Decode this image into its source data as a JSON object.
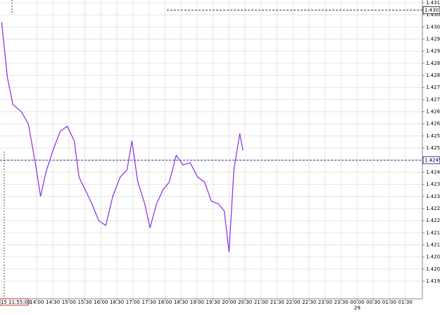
{
  "chart_data": {
    "type": "line",
    "color": "#8a2be2",
    "grid": true,
    "x": [
      "12:54",
      "13:05",
      "13:15",
      "13:31",
      "13:44",
      "13:57",
      "14:07",
      "14:17",
      "14:30",
      "14:44",
      "14:57",
      "15:10",
      "15:19",
      "15:30",
      "15:43",
      "15:56",
      "16:09",
      "16:22",
      "16:36",
      "16:49",
      "16:58",
      "17:09",
      "17:22",
      "17:32",
      "17:44",
      "17:57",
      "18:08",
      "18:21",
      "18:34",
      "18:47",
      "19:01",
      "19:14",
      "19:27",
      "19:40",
      "19:51",
      "20:00",
      "20:09",
      "20:20",
      "20:26"
    ],
    "values": [
      1.4302,
      1.4279,
      1.4268,
      1.4265,
      1.426,
      1.4244,
      1.423,
      1.424,
      1.4249,
      1.4257,
      1.4259,
      1.4253,
      1.4238,
      1.4233,
      1.4227,
      1.422,
      1.4218,
      1.423,
      1.4238,
      1.4241,
      1.4253,
      1.4236,
      1.4227,
      1.4217,
      1.4227,
      1.4233,
      1.4236,
      1.4247,
      1.4243,
      1.4244,
      1.4238,
      1.4236,
      1.4228,
      1.4227,
      1.4224,
      1.4207,
      1.4241,
      1.4256,
      1.4249
    ],
    "xlim": [
      "12:51",
      "02:02"
    ],
    "xticks": [
      "14:00",
      "14:30",
      "15:00",
      "15:30",
      "16:00",
      "16:30",
      "17:00",
      "17:30",
      "18:00",
      "18:30",
      "19:00",
      "19:30",
      "20:00",
      "20:30",
      "21:00",
      "21:30",
      "22:00",
      "22:30",
      "23:00",
      "23:30",
      "00:00",
      "00:30",
      "01:00",
      "01:30"
    ],
    "date_label": "29",
    "crosshair_time": "15 11:55:00",
    "ylim": [
      1.4195,
      1.431
    ],
    "yticks": [
      1.4195,
      {
        "value": 1.42,
        "label": "1.4200"
      },
      1.4205,
      {
        "value": 1.421,
        "label": "1.4210"
      },
      1.4215,
      {
        "value": 1.422,
        "label": "1.4220"
      },
      1.4225,
      {
        "value": 1.423,
        "label": "1.4230"
      },
      1.4235,
      {
        "value": 1.424,
        "label": "1.4240"
      },
      1.4245,
      {
        "value": 1.425,
        "label": "1.4250"
      },
      1.4255,
      {
        "value": 1.426,
        "label": "1.4260"
      },
      1.4265,
      {
        "value": 1.427,
        "label": "1.4270"
      },
      1.4275,
      {
        "value": 1.428,
        "label": "1.4280"
      },
      1.4285,
      {
        "value": 1.429,
        "label": "1.4290"
      },
      1.4295,
      {
        "value": 1.43,
        "label": "1.4300"
      },
      1.4305,
      {
        "value": 1.431,
        "label": "1.4310"
      }
    ],
    "price_lines": [
      {
        "value": 1.4245,
        "label": "1.4245",
        "color": "#3a3aa8"
      },
      {
        "value": 1.4307,
        "label": "1.4307",
        "color": "#333333"
      }
    ]
  }
}
